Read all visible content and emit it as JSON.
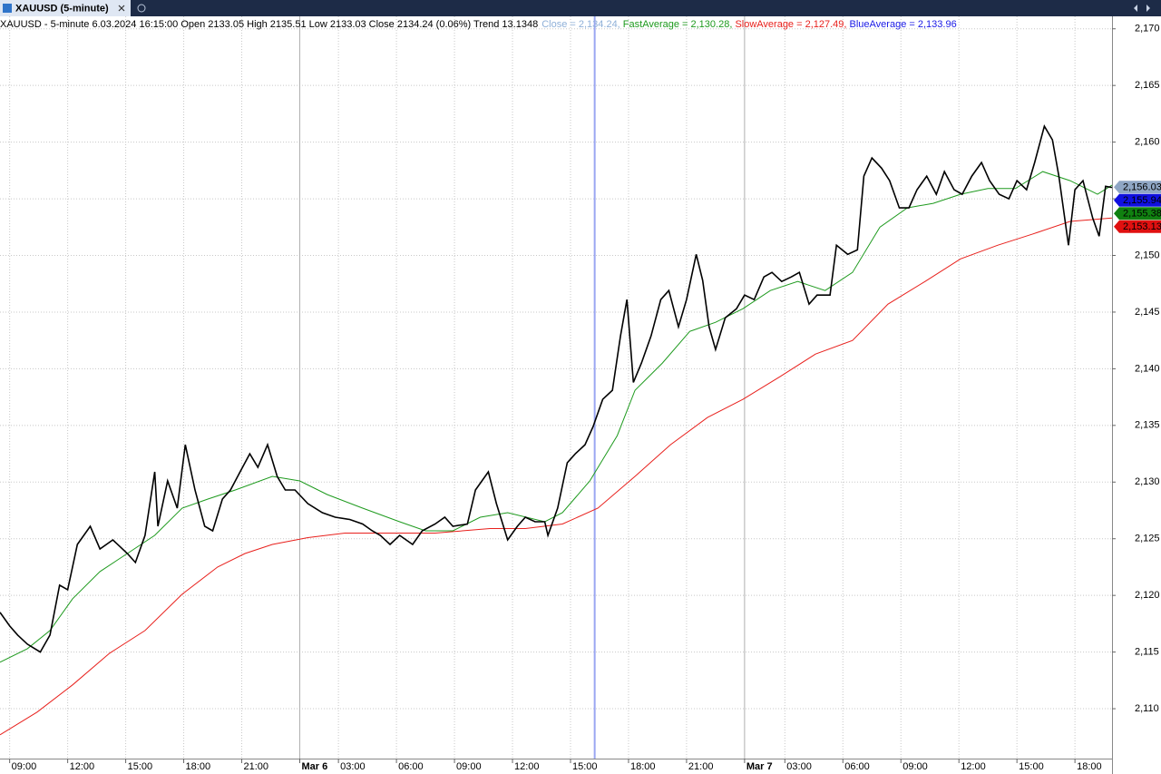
{
  "tab": {
    "title": "XAUUSD (5-minute)"
  },
  "info": "XAUUSD - 5-minute 6.03.2024 16:15:00 Open 2133.05 High 2135.51 Low 2133.03 Close 2134.24 (0.06%) Trend 13.1348",
  "chart_data": {
    "type": "line",
    "xlim": [
      0,
      690
    ],
    "ylim": [
      2105.6,
      2171.1
    ],
    "grid": true,
    "xticks": [
      {
        "value": 6,
        "label": "09:00"
      },
      {
        "value": 42,
        "label": "12:00"
      },
      {
        "value": 78,
        "label": "15:00"
      },
      {
        "value": 114,
        "label": "18:00"
      },
      {
        "value": 150,
        "label": "21:00"
      },
      {
        "value": 186,
        "label": "Mar 6"
      },
      {
        "value": 210,
        "label": "03:00"
      },
      {
        "value": 246,
        "label": "06:00"
      },
      {
        "value": 282,
        "label": "09:00"
      },
      {
        "value": 318,
        "label": "12:00"
      },
      {
        "value": 354,
        "label": "15:00"
      },
      {
        "value": 390,
        "label": "18:00"
      },
      {
        "value": 426,
        "label": "21:00"
      },
      {
        "value": 462,
        "label": "Mar 7"
      },
      {
        "value": 487,
        "label": "03:00"
      },
      {
        "value": 523,
        "label": "06:00"
      },
      {
        "value": 559,
        "label": "09:00"
      },
      {
        "value": 595,
        "label": "12:00"
      },
      {
        "value": 631,
        "label": "15:00"
      },
      {
        "value": 667,
        "label": "18:00"
      }
    ],
    "yticks": [
      {
        "value": 2110,
        "label": "2,110"
      },
      {
        "value": 2115,
        "label": "2,115"
      },
      {
        "value": 2120,
        "label": "2,120"
      },
      {
        "value": 2125,
        "label": "2,125"
      },
      {
        "value": 2130,
        "label": "2,130"
      },
      {
        "value": 2135,
        "label": "2,135"
      },
      {
        "value": 2140,
        "label": "2,140"
      },
      {
        "value": 2145,
        "label": "2,145"
      },
      {
        "value": 2150,
        "label": "2,150"
      },
      {
        "value": 2155,
        "label": "2,155"
      },
      {
        "value": 2160,
        "label": "2,160"
      },
      {
        "value": 2165,
        "label": "2,165"
      },
      {
        "value": 2170,
        "label": "2,170"
      }
    ],
    "cursor": {
      "x": 369,
      "color": "#9aa6f2"
    },
    "series": [
      {
        "name": "Close",
        "legend": " = 2,134.24, ",
        "color": "#000000",
        "legend_color": "#8fb0d8",
        "x": [
          0,
          6,
          11,
          17,
          25,
          31,
          37,
          42,
          48,
          56,
          62,
          70,
          79,
          84,
          90,
          96,
          98,
          104,
          110,
          115,
          121,
          127,
          132,
          138,
          143,
          149,
          155,
          160,
          166,
          172,
          177,
          183,
          191,
          200,
          208,
          217,
          225,
          231,
          236,
          242,
          248,
          256,
          262,
          270,
          276,
          281,
          290,
          295,
          303,
          308,
          315,
          321,
          326,
          332,
          338,
          340,
          346,
          352,
          357,
          363,
          368,
          374,
          380,
          385,
          389,
          393,
          398,
          404,
          410,
          415,
          421,
          426,
          432,
          436,
          440,
          444,
          450,
          457,
          462,
          468,
          474,
          479,
          485,
          491,
          496,
          502,
          507,
          515,
          519,
          526,
          532,
          536,
          541,
          547,
          552,
          558,
          564,
          569,
          575,
          581,
          586,
          592,
          597,
          603,
          609,
          614,
          620,
          626,
          631,
          637,
          642,
          648,
          653,
          657,
          663,
          667,
          672,
          678,
          682,
          686,
          690
        ],
        "values": [
          2118.5,
          2117.3,
          2116.5,
          2115.7,
          2115.0,
          2116.5,
          2120.9,
          2120.5,
          2124.5,
          2126.1,
          2124.1,
          2124.9,
          2123.7,
          2122.9,
          2125.3,
          2130.9,
          2126.1,
          2130.1,
          2127.7,
          2133.3,
          2129.3,
          2126.1,
          2125.7,
          2128.5,
          2129.3,
          2130.9,
          2132.5,
          2131.3,
          2133.3,
          2130.5,
          2129.3,
          2129.3,
          2128.1,
          2127.3,
          2126.9,
          2126.7,
          2126.3,
          2125.7,
          2125.3,
          2124.5,
          2125.3,
          2124.5,
          2125.7,
          2126.3,
          2126.9,
          2126.1,
          2126.3,
          2129.3,
          2130.9,
          2128.1,
          2124.9,
          2126.1,
          2126.9,
          2126.5,
          2126.5,
          2125.3,
          2127.7,
          2131.7,
          2132.5,
          2133.3,
          2134.9,
          2137.3,
          2138.1,
          2142.9,
          2146.1,
          2138.8,
          2140.5,
          2142.9,
          2146.1,
          2146.9,
          2143.7,
          2146.1,
          2150.1,
          2147.8,
          2143.7,
          2141.7,
          2144.5,
          2145.3,
          2146.5,
          2146.1,
          2148.1,
          2148.5,
          2147.7,
          2148.1,
          2148.5,
          2145.7,
          2146.5,
          2146.5,
          2150.9,
          2150.1,
          2150.5,
          2157.0,
          2158.6,
          2157.7,
          2156.6,
          2154.2,
          2154.2,
          2155.8,
          2157.0,
          2155.4,
          2157.4,
          2155.8,
          2155.4,
          2157.0,
          2158.2,
          2156.6,
          2155.4,
          2155.0,
          2156.6,
          2155.8,
          2158.2,
          2161.4,
          2160.2,
          2157.0,
          2150.9,
          2155.8,
          2156.6,
          2153.3,
          2151.7,
          2156.1,
          2156.0
        ]
      },
      {
        "name": "FastAverage",
        "legend": " = 2,130.28, ",
        "color": "#1e9a1e",
        "legend_color": "#1e9a1e",
        "x": [
          0,
          17,
          31,
          45,
          62,
          79,
          96,
          113,
          129,
          146,
          169,
          186,
          203,
          225,
          248,
          264,
          281,
          298,
          315,
          338,
          349,
          366,
          383,
          394,
          411,
          428,
          444,
          461,
          478,
          495,
          512,
          529,
          546,
          563,
          579,
          596,
          613,
          630,
          647,
          664,
          681,
          690
        ],
        "values": [
          2114.1,
          2115.3,
          2116.9,
          2119.7,
          2122.1,
          2123.7,
          2125.3,
          2127.7,
          2128.5,
          2129.3,
          2130.5,
          2130.1,
          2128.9,
          2127.7,
          2126.5,
          2125.7,
          2125.7,
          2126.9,
          2127.3,
          2126.5,
          2127.3,
          2130.1,
          2134.1,
          2138.1,
          2140.5,
          2143.3,
          2144.1,
          2145.3,
          2146.9,
          2147.7,
          2146.9,
          2148.5,
          2152.5,
          2154.2,
          2154.6,
          2155.4,
          2155.9,
          2155.9,
          2157.4,
          2156.6,
          2155.4,
          2156.2
        ]
      },
      {
        "name": "SlowAverage",
        "legend": " = 2,127.49, ",
        "color": "#e8201c",
        "legend_color": "#e8201c",
        "x": [
          0,
          23,
          45,
          68,
          90,
          113,
          135,
          152,
          169,
          191,
          214,
          236,
          270,
          304,
          326,
          349,
          371,
          394,
          416,
          439,
          461,
          484,
          506,
          529,
          551,
          574,
          596,
          619,
          641,
          664,
          690
        ],
        "values": [
          2107.7,
          2109.7,
          2112.1,
          2114.9,
          2116.9,
          2120.1,
          2122.5,
          2123.7,
          2124.5,
          2125.1,
          2125.5,
          2125.5,
          2125.5,
          2125.9,
          2125.9,
          2126.3,
          2127.7,
          2130.5,
          2133.3,
          2135.7,
          2137.3,
          2139.3,
          2141.3,
          2142.5,
          2145.7,
          2147.7,
          2149.7,
          2150.9,
          2151.9,
          2153.0,
          2153.3
        ]
      },
      {
        "name": "BlueAverage",
        "legend": " = 2,133.96",
        "color": "#1a1ae6",
        "legend_color": "#1a1ae6",
        "x": [],
        "values": []
      }
    ],
    "price_tags": [
      {
        "value": 2156.03,
        "label": "2,156.03",
        "color": "#8fa6c4"
      },
      {
        "value": 2155.94,
        "label": "2,155.94",
        "color": "#1010e0"
      },
      {
        "value": 2155.38,
        "label": "2,155.38",
        "color": "#108010"
      },
      {
        "value": 2153.13,
        "label": "2,153.13",
        "color": "#e01010"
      }
    ]
  }
}
